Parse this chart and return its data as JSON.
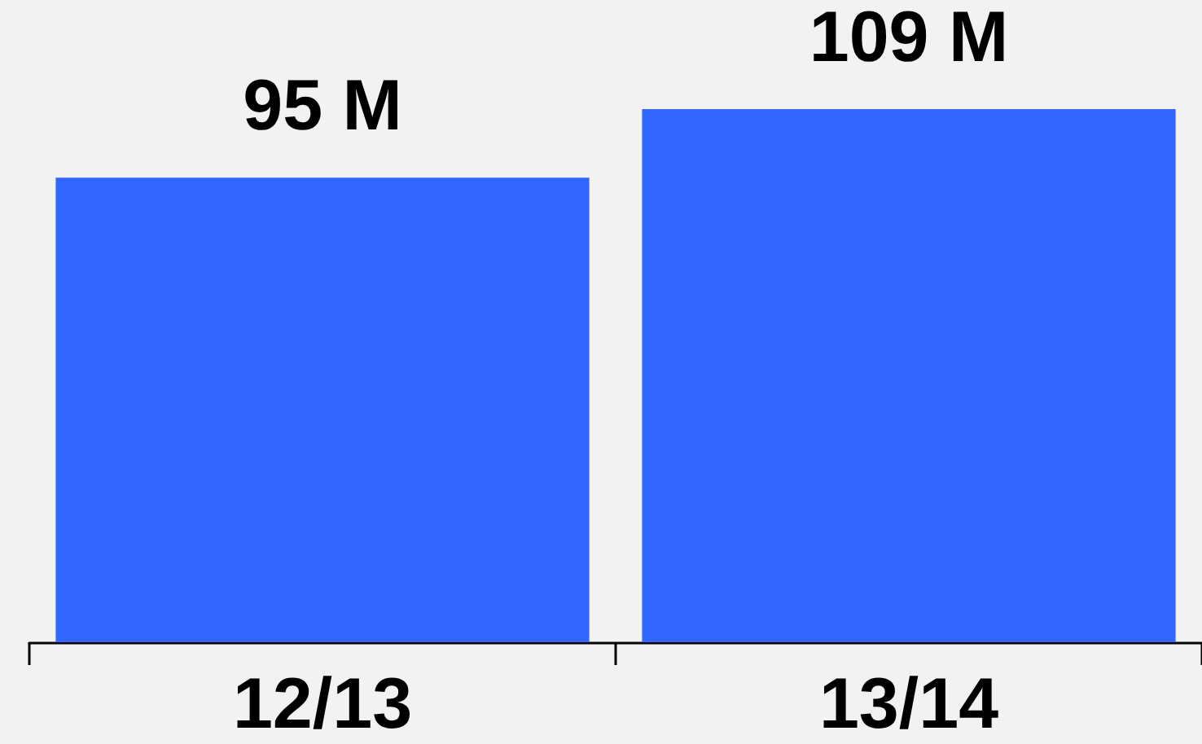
{
  "chart_data": {
    "type": "bar",
    "categories": [
      "12/13",
      "13/14"
    ],
    "values": [
      95,
      109
    ],
    "color": "#3366ff",
    "value_labels": [
      "95 M",
      "109 M"
    ]
  }
}
